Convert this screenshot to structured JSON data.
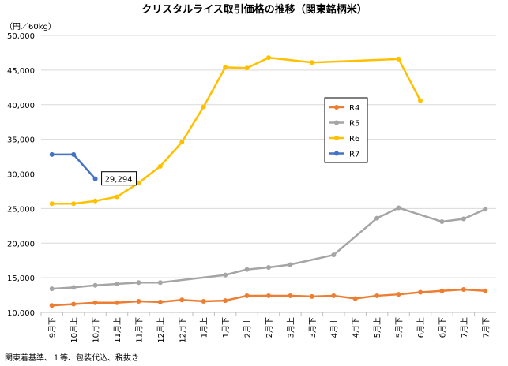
{
  "chart_data": {
    "type": "line",
    "title": "クリスタルライス取引価格の推移（関東銘柄米）",
    "unit_label": "（円／60kg）",
    "footnote": "関東着基準、１等、包装代込、税抜き",
    "ylim": [
      10000,
      50000
    ],
    "yticks": [
      "10,000",
      "15,000",
      "20,000",
      "25,000",
      "30,000",
      "35,000",
      "40,000",
      "45,000",
      "50,000"
    ],
    "ytick_values": [
      10000,
      15000,
      20000,
      25000,
      30000,
      35000,
      40000,
      45000,
      50000
    ],
    "categories": [
      "9月下",
      "10月上",
      "10月下",
      "11月上",
      "11月下",
      "12月上",
      "12月下",
      "1月上",
      "1月下",
      "2月上",
      "2月下",
      "3月上",
      "3月下",
      "4月上",
      "4月下",
      "5月上",
      "5月下",
      "6月上",
      "6月下",
      "7月上",
      "7月下"
    ],
    "series": [
      {
        "name": "R4",
        "color": "#ED7D31",
        "values": [
          11000,
          11200,
          11400,
          11400,
          11600,
          11500,
          11800,
          11600,
          11700,
          12400,
          12400,
          12400,
          12300,
          12400,
          12000,
          12400,
          12600,
          12900,
          13100,
          13300,
          13100
        ]
      },
      {
        "name": "R5",
        "color": "#A5A5A5",
        "values": [
          13400,
          13600,
          13900,
          14100,
          14300,
          14300,
          null,
          null,
          15400,
          16200,
          16500,
          16900,
          null,
          18300,
          null,
          23600,
          25100,
          null,
          23100,
          23500,
          24900
        ]
      },
      {
        "name": "R6",
        "color": "#FFC000",
        "values": [
          25700,
          25700,
          26100,
          26700,
          28700,
          31100,
          34600,
          39700,
          45400,
          45300,
          46800,
          null,
          46100,
          null,
          null,
          null,
          46600,
          40600,
          null,
          null,
          null
        ]
      },
      {
        "name": "R7",
        "color": "#4472C4",
        "values": [
          32800,
          32800,
          29294,
          null,
          null,
          null,
          null,
          null,
          null,
          null,
          null,
          null,
          null,
          null,
          null,
          null,
          null,
          null,
          null,
          null,
          null
        ]
      }
    ],
    "annotation": {
      "series": "R7",
      "index": 2,
      "text": "29,294"
    },
    "legend_position": "right-middle"
  }
}
